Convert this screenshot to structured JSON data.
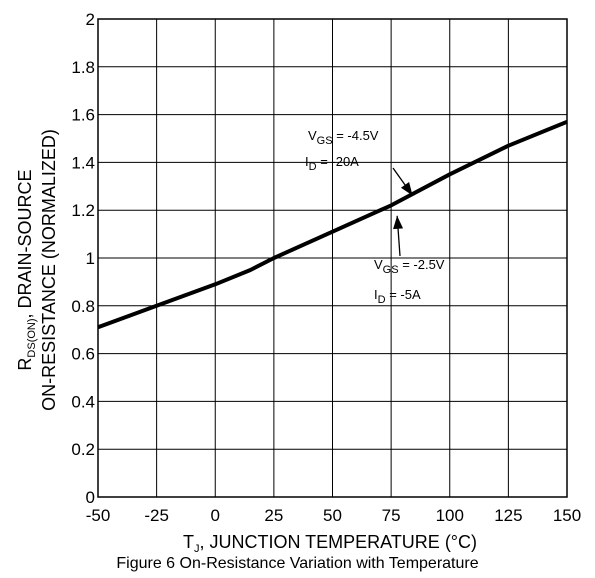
{
  "chart_data": {
    "type": "line",
    "x": [
      -50,
      -25,
      0,
      15,
      25,
      50,
      75,
      100,
      125,
      150
    ],
    "series": [
      {
        "values": [
          0.71,
          0.8,
          0.89,
          0.95,
          1.0,
          1.11,
          1.22,
          1.35,
          1.47,
          1.57
        ]
      }
    ],
    "xlim": [
      -50,
      150
    ],
    "ylim": [
      0,
      2
    ],
    "x_ticks": [
      -50,
      -25,
      0,
      25,
      50,
      75,
      100,
      125,
      150
    ],
    "y_ticks": [
      0,
      0.2,
      0.4,
      0.6,
      0.8,
      1,
      1.2,
      1.4,
      1.6,
      1.8,
      2
    ],
    "x_tick_labels": [
      "-50",
      "-25",
      "0",
      "25",
      "50",
      "75",
      "100",
      "125",
      "150"
    ],
    "y_tick_labels": [
      "0",
      "0.2",
      "0.4",
      "0.6",
      "0.8",
      "1",
      "1.2",
      "1.4",
      "1.6",
      "1.8",
      "2"
    ],
    "grid": true,
    "xlabel": {
      "prefix": "T",
      "sub": "J",
      "rest": ", JUNCTION TEMPERATURE (°C)"
    },
    "ylabel": {
      "line1_prefix": "R",
      "line1_sub": "DS(ON)",
      "line1_rest": ", DRAIN-SOURCE",
      "line2": "ON-RESISTANCE (NORMALIZED)"
    },
    "annotations": [
      {
        "name": "upper",
        "v_main": "V",
        "v_sub": "GS",
        "v_value": " = -4.5V",
        "i_main": "I",
        "i_sub": "D",
        "i_value": " = -20A",
        "points_to": [
          85,
          1.27
        ]
      },
      {
        "name": "lower",
        "v_main": "V",
        "v_sub": "GS",
        "v_value": " = -2.5V",
        "i_main": "I",
        "i_sub": "D",
        "i_value": " = -5A",
        "points_to": [
          75,
          1.21
        ]
      }
    ],
    "caption": "Figure 6 On-Resistance Variation with Temperature",
    "line_color": "#000000",
    "grid_color": "#000000"
  }
}
